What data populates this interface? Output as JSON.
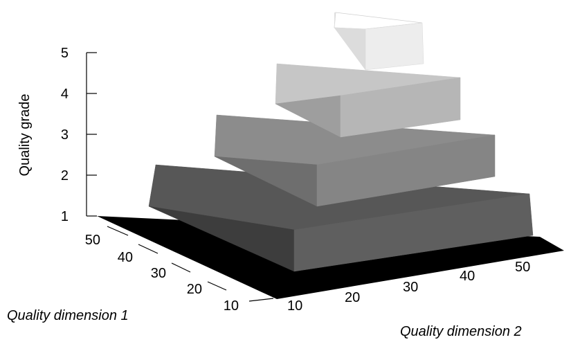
{
  "chart_data": {
    "type": "3d-stepped-surface",
    "xlabel": "Quality dimension 2",
    "ylabel": "Quality dimension 1",
    "zlabel": "Quality grade",
    "x_ticks": [
      10,
      20,
      30,
      40,
      50
    ],
    "y_ticks": [
      10,
      20,
      30,
      40,
      50
    ],
    "z_ticks": [
      1,
      2,
      3,
      4,
      5
    ],
    "zlim": [
      1,
      5
    ],
    "levels": [
      {
        "grade": 2,
        "color": "#595959"
      },
      {
        "grade": 3,
        "color": "#7f7f7f"
      },
      {
        "grade": 4,
        "color": "#b4b4b4"
      },
      {
        "grade": 5,
        "color": "#ececec"
      }
    ],
    "floor_color": "#000000",
    "grid": false
  }
}
